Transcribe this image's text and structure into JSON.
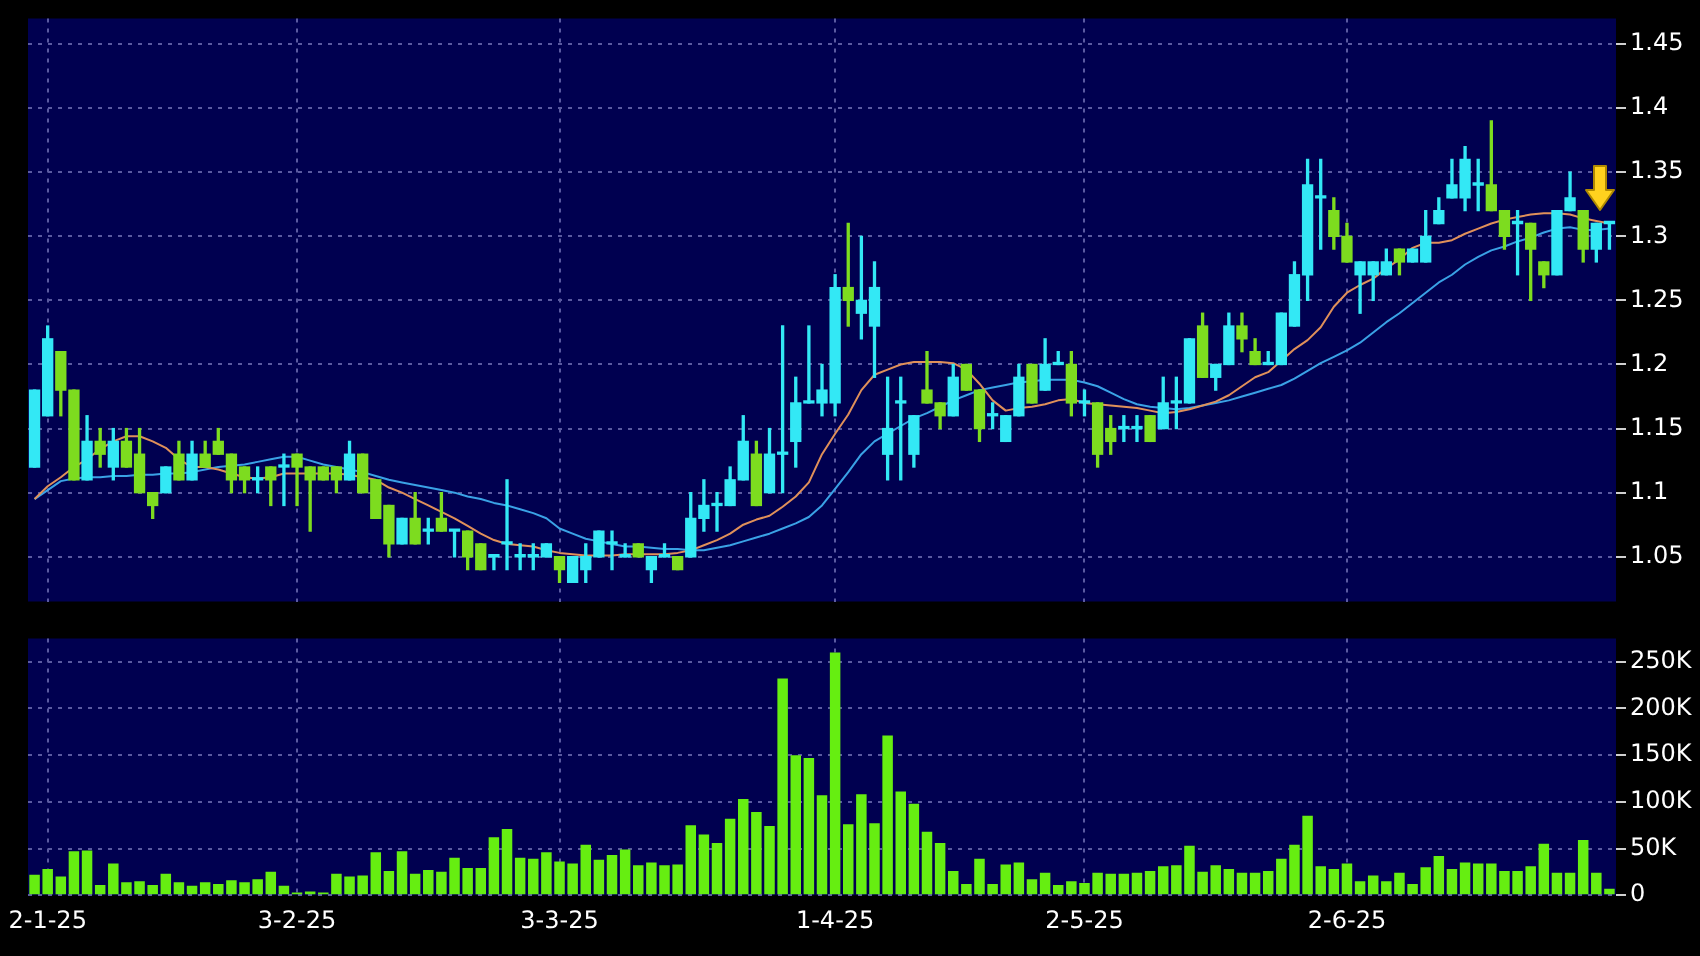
{
  "chart_data": [
    {
      "type": "candlestick",
      "categories": [
        null,
        null,
        null,
        null,
        null,
        null,
        null,
        null,
        null,
        null,
        null,
        null,
        null,
        null,
        null,
        null,
        null,
        null,
        null,
        null,
        null,
        null,
        null,
        null,
        null,
        null,
        null,
        null,
        null,
        null,
        null,
        null,
        null,
        null,
        null,
        null,
        null,
        null,
        null,
        null,
        null,
        null,
        null,
        null,
        null,
        null,
        null,
        null,
        null,
        null,
        null,
        null,
        null,
        null,
        null,
        null,
        null,
        null,
        null,
        null,
        null,
        null,
        null,
        null,
        null,
        null,
        null,
        null,
        null,
        null,
        null,
        null,
        null,
        null,
        null,
        null,
        null,
        null,
        null,
        null,
        null,
        null,
        null,
        null,
        null,
        null,
        null,
        null,
        null,
        null,
        null,
        null,
        null,
        null,
        null,
        null,
        null,
        null,
        null,
        null,
        null,
        null,
        null,
        null,
        null,
        null,
        null,
        null,
        null,
        null,
        null,
        null,
        null,
        null,
        null,
        null,
        null,
        null,
        null,
        null,
        null
      ],
      "ohlc": [
        [
          1.12,
          1.18,
          1.12,
          1.18
        ],
        [
          1.16,
          1.23,
          1.16,
          1.22
        ],
        [
          1.21,
          1.21,
          1.16,
          1.18
        ],
        [
          1.18,
          1.18,
          1.11,
          1.11
        ],
        [
          1.11,
          1.16,
          1.11,
          1.14
        ],
        [
          1.14,
          1.15,
          1.12,
          1.13
        ],
        [
          1.12,
          1.15,
          1.11,
          1.14
        ],
        [
          1.14,
          1.15,
          1.12,
          1.12
        ],
        [
          1.13,
          1.15,
          1.1,
          1.1
        ],
        [
          1.1,
          1.1,
          1.08,
          1.09
        ],
        [
          1.1,
          1.12,
          1.1,
          1.12
        ],
        [
          1.13,
          1.14,
          1.11,
          1.11
        ],
        [
          1.11,
          1.14,
          1.11,
          1.13
        ],
        [
          1.13,
          1.14,
          1.12,
          1.12
        ],
        [
          1.14,
          1.15,
          1.13,
          1.13
        ],
        [
          1.13,
          1.13,
          1.1,
          1.11
        ],
        [
          1.12,
          1.12,
          1.1,
          1.11
        ],
        [
          1.11,
          1.12,
          1.1,
          1.11
        ],
        [
          1.12,
          1.12,
          1.09,
          1.11
        ],
        [
          1.12,
          1.13,
          1.09,
          1.12
        ],
        [
          1.13,
          1.13,
          1.09,
          1.12
        ],
        [
          1.12,
          1.12,
          1.07,
          1.11
        ],
        [
          1.12,
          1.12,
          1.11,
          1.11
        ],
        [
          1.12,
          1.12,
          1.1,
          1.11
        ],
        [
          1.11,
          1.14,
          1.11,
          1.13
        ],
        [
          1.13,
          1.13,
          1.1,
          1.1
        ],
        [
          1.11,
          1.11,
          1.08,
          1.08
        ],
        [
          1.09,
          1.09,
          1.05,
          1.06
        ],
        [
          1.06,
          1.08,
          1.06,
          1.08
        ],
        [
          1.08,
          1.1,
          1.06,
          1.06
        ],
        [
          1.07,
          1.08,
          1.06,
          1.07
        ],
        [
          1.08,
          1.1,
          1.07,
          1.07
        ],
        [
          1.07,
          1.07,
          1.05,
          1.07
        ],
        [
          1.07,
          1.07,
          1.04,
          1.05
        ],
        [
          1.06,
          1.06,
          1.04,
          1.04
        ],
        [
          1.05,
          1.05,
          1.04,
          1.05
        ],
        [
          1.06,
          1.11,
          1.04,
          1.06
        ],
        [
          1.05,
          1.06,
          1.04,
          1.05
        ],
        [
          1.05,
          1.06,
          1.04,
          1.05
        ],
        [
          1.05,
          1.06,
          1.05,
          1.06
        ],
        [
          1.05,
          1.05,
          1.03,
          1.04
        ],
        [
          1.03,
          1.05,
          1.03,
          1.05
        ],
        [
          1.04,
          1.06,
          1.03,
          1.05
        ],
        [
          1.05,
          1.07,
          1.05,
          1.07
        ],
        [
          1.06,
          1.07,
          1.04,
          1.06
        ],
        [
          1.05,
          1.06,
          1.05,
          1.05
        ],
        [
          1.06,
          1.06,
          1.05,
          1.05
        ],
        [
          1.04,
          1.05,
          1.03,
          1.05
        ],
        [
          1.05,
          1.06,
          1.05,
          1.05
        ],
        [
          1.05,
          1.05,
          1.04,
          1.04
        ],
        [
          1.05,
          1.1,
          1.05,
          1.08
        ],
        [
          1.08,
          1.11,
          1.07,
          1.09
        ],
        [
          1.09,
          1.1,
          1.07,
          1.09
        ],
        [
          1.09,
          1.12,
          1.09,
          1.11
        ],
        [
          1.11,
          1.16,
          1.11,
          1.14
        ],
        [
          1.13,
          1.14,
          1.09,
          1.09
        ],
        [
          1.1,
          1.15,
          1.1,
          1.13
        ],
        [
          1.13,
          1.23,
          1.1,
          1.13
        ],
        [
          1.14,
          1.19,
          1.12,
          1.17
        ],
        [
          1.17,
          1.23,
          1.17,
          1.17
        ],
        [
          1.17,
          1.2,
          1.16,
          1.18
        ],
        [
          1.17,
          1.27,
          1.16,
          1.26
        ],
        [
          1.26,
          1.31,
          1.23,
          1.25
        ],
        [
          1.24,
          1.3,
          1.22,
          1.25
        ],
        [
          1.23,
          1.28,
          1.19,
          1.26
        ],
        [
          1.13,
          1.19,
          1.11,
          1.15
        ],
        [
          1.17,
          1.19,
          1.11,
          1.17
        ],
        [
          1.13,
          1.16,
          1.12,
          1.16
        ],
        [
          1.18,
          1.21,
          1.17,
          1.17
        ],
        [
          1.17,
          1.17,
          1.15,
          1.16
        ],
        [
          1.16,
          1.2,
          1.16,
          1.19
        ],
        [
          1.2,
          1.2,
          1.18,
          1.18
        ],
        [
          1.18,
          1.18,
          1.14,
          1.15
        ],
        [
          1.16,
          1.17,
          1.15,
          1.16
        ],
        [
          1.14,
          1.16,
          1.14,
          1.16
        ],
        [
          1.16,
          1.2,
          1.16,
          1.19
        ],
        [
          1.2,
          1.2,
          1.17,
          1.17
        ],
        [
          1.18,
          1.22,
          1.18,
          1.2
        ],
        [
          1.2,
          1.21,
          1.2,
          1.2
        ],
        [
          1.2,
          1.21,
          1.16,
          1.17
        ],
        [
          1.17,
          1.18,
          1.16,
          1.17
        ],
        [
          1.17,
          1.17,
          1.12,
          1.13
        ],
        [
          1.15,
          1.16,
          1.13,
          1.14
        ],
        [
          1.15,
          1.16,
          1.14,
          1.15
        ],
        [
          1.15,
          1.16,
          1.14,
          1.15
        ],
        [
          1.16,
          1.16,
          1.14,
          1.14
        ],
        [
          1.15,
          1.19,
          1.15,
          1.17
        ],
        [
          1.17,
          1.19,
          1.15,
          1.17
        ],
        [
          1.17,
          1.22,
          1.17,
          1.22
        ],
        [
          1.23,
          1.24,
          1.19,
          1.19
        ],
        [
          1.19,
          1.2,
          1.18,
          1.2
        ],
        [
          1.2,
          1.24,
          1.2,
          1.23
        ],
        [
          1.23,
          1.24,
          1.21,
          1.22
        ],
        [
          1.21,
          1.22,
          1.2,
          1.2
        ],
        [
          1.2,
          1.21,
          1.2,
          1.2
        ],
        [
          1.2,
          1.24,
          1.2,
          1.24
        ],
        [
          1.23,
          1.28,
          1.23,
          1.27
        ],
        [
          1.27,
          1.36,
          1.25,
          1.34
        ],
        [
          1.33,
          1.36,
          1.29,
          1.33
        ],
        [
          1.32,
          1.33,
          1.29,
          1.3
        ],
        [
          1.3,
          1.31,
          1.28,
          1.28
        ],
        [
          1.27,
          1.28,
          1.24,
          1.28
        ],
        [
          1.27,
          1.28,
          1.25,
          1.28
        ],
        [
          1.27,
          1.29,
          1.27,
          1.28
        ],
        [
          1.29,
          1.29,
          1.27,
          1.28
        ],
        [
          1.28,
          1.29,
          1.28,
          1.29
        ],
        [
          1.28,
          1.32,
          1.28,
          1.3
        ],
        [
          1.31,
          1.33,
          1.31,
          1.32
        ],
        [
          1.33,
          1.36,
          1.33,
          1.34
        ],
        [
          1.33,
          1.37,
          1.32,
          1.36
        ],
        [
          1.34,
          1.36,
          1.32,
          1.34
        ],
        [
          1.34,
          1.39,
          1.32,
          1.32
        ],
        [
          1.32,
          1.32,
          1.29,
          1.3
        ],
        [
          1.31,
          1.32,
          1.27,
          1.31
        ],
        [
          1.31,
          1.31,
          1.25,
          1.29
        ],
        [
          1.28,
          1.28,
          1.26,
          1.27
        ],
        [
          1.27,
          1.32,
          1.27,
          1.32
        ],
        [
          1.32,
          1.35,
          1.32,
          1.33
        ],
        [
          1.32,
          1.32,
          1.28,
          1.29
        ],
        [
          1.29,
          1.31,
          1.28,
          1.31
        ],
        [
          1.31,
          1.31,
          1.29,
          1.31
        ]
      ],
      "colors": [
        "#33e8f5",
        "#33e8f5",
        "#7ddc1f",
        "#7ddc1f",
        "#33e8f5",
        "#7ddc1f",
        "#33e8f5",
        "#7ddc1f",
        "#7ddc1f",
        "#7ddc1f",
        "#33e8f5",
        "#7ddc1f",
        "#33e8f5",
        "#7ddc1f",
        "#7ddc1f",
        "#7ddc1f",
        "#7ddc1f",
        "#33e8f5",
        "#7ddc1f",
        "#33e8f5",
        "#7ddc1f",
        "#7ddc1f",
        "#7ddc1f",
        "#7ddc1f",
        "#33e8f5",
        "#7ddc1f",
        "#7ddc1f",
        "#7ddc1f",
        "#33e8f5",
        "#7ddc1f",
        "#33e8f5",
        "#7ddc1f",
        "#33e8f5",
        "#7ddc1f",
        "#7ddc1f",
        "#33e8f5",
        "#33e8f5",
        "#33e8f5",
        "#33e8f5",
        "#33e8f5",
        "#7ddc1f",
        "#33e8f5",
        "#33e8f5",
        "#33e8f5",
        "#33e8f5",
        "#33e8f5",
        "#7ddc1f",
        "#33e8f5",
        "#33e8f5",
        "#7ddc1f",
        "#33e8f5",
        "#33e8f5",
        "#33e8f5",
        "#33e8f5",
        "#33e8f5",
        "#7ddc1f",
        "#33e8f5",
        "#33e8f5",
        "#33e8f5",
        "#33e8f5",
        "#33e8f5",
        "#33e8f5",
        "#7ddc1f",
        "#33e8f5",
        "#33e8f5",
        "#33e8f5",
        "#33e8f5",
        "#33e8f5",
        "#7ddc1f",
        "#7ddc1f",
        "#33e8f5",
        "#7ddc1f",
        "#7ddc1f",
        "#33e8f5",
        "#33e8f5",
        "#33e8f5",
        "#7ddc1f",
        "#33e8f5",
        "#33e8f5",
        "#7ddc1f",
        "#33e8f5",
        "#7ddc1f",
        "#7ddc1f",
        "#33e8f5",
        "#33e8f5",
        "#7ddc1f",
        "#33e8f5",
        "#33e8f5",
        "#33e8f5",
        "#7ddc1f",
        "#33e8f5",
        "#33e8f5",
        "#7ddc1f",
        "#7ddc1f",
        "#33e8f5",
        "#33e8f5",
        "#33e8f5",
        "#33e8f5",
        "#33e8f5",
        "#7ddc1f",
        "#7ddc1f",
        "#33e8f5",
        "#33e8f5",
        "#33e8f5",
        "#7ddc1f",
        "#33e8f5",
        "#33e8f5",
        "#33e8f5",
        "#33e8f5",
        "#33e8f5",
        "#33e8f5",
        "#7ddc1f",
        "#7ddc1f",
        "#33e8f5",
        "#7ddc1f",
        "#7ddc1f",
        "#33e8f5",
        "#33e8f5",
        "#7ddc1f",
        "#33e8f5",
        "#33e8f5"
      ],
      "series": [
        {
          "type": "line",
          "color": "#e0905a",
          "values": [
            1.095,
            1.105,
            1.112,
            1.12,
            1.126,
            1.134,
            1.14,
            1.144,
            1.144,
            1.14,
            1.135,
            1.126,
            1.12,
            1.12,
            1.118,
            1.115,
            1.112,
            1.111,
            1.112,
            1.115,
            1.115,
            1.115,
            1.115,
            1.115,
            1.114,
            1.112,
            1.11,
            1.104,
            1.1,
            1.095,
            1.09,
            1.085,
            1.08,
            1.074,
            1.068,
            1.063,
            1.06,
            1.059,
            1.058,
            1.055,
            1.053,
            1.052,
            1.051,
            1.051,
            1.051,
            1.052,
            1.052,
            1.052,
            1.052,
            1.053,
            1.055,
            1.059,
            1.063,
            1.068,
            1.075,
            1.079,
            1.082,
            1.089,
            1.097,
            1.108,
            1.13,
            1.146,
            1.161,
            1.18,
            1.192,
            1.196,
            1.2,
            1.202,
            1.202,
            1.202,
            1.201,
            1.196,
            1.185,
            1.172,
            1.164,
            1.166,
            1.167,
            1.169,
            1.172,
            1.173,
            1.17,
            1.169,
            1.168,
            1.167,
            1.166,
            1.164,
            1.162,
            1.163,
            1.165,
            1.168,
            1.171,
            1.176,
            1.183,
            1.19,
            1.194,
            1.203,
            1.212,
            1.219,
            1.229,
            1.245,
            1.256,
            1.262,
            1.267,
            1.275,
            1.282,
            1.291,
            1.295,
            1.295,
            1.297,
            1.302,
            1.306,
            1.31,
            1.313,
            1.315,
            1.317,
            1.318,
            1.318,
            1.317,
            1.314,
            1.312,
            1.31
          ]
        },
        {
          "type": "line",
          "color": "#3aa2e6",
          "values": [
            1.095,
            1.102,
            1.109,
            1.111,
            1.112,
            1.112,
            1.113,
            1.113,
            1.114,
            1.114,
            1.115,
            1.115,
            1.116,
            1.118,
            1.12,
            1.121,
            1.122,
            1.124,
            1.126,
            1.128,
            1.128,
            1.125,
            1.122,
            1.12,
            1.118,
            1.116,
            1.113,
            1.11,
            1.108,
            1.106,
            1.104,
            1.102,
            1.1,
            1.097,
            1.095,
            1.092,
            1.09,
            1.087,
            1.084,
            1.08,
            1.072,
            1.068,
            1.064,
            1.062,
            1.06,
            1.058,
            1.058,
            1.057,
            1.056,
            1.056,
            1.055,
            1.055,
            1.057,
            1.059,
            1.062,
            1.065,
            1.068,
            1.072,
            1.076,
            1.081,
            1.09,
            1.103,
            1.116,
            1.13,
            1.14,
            1.146,
            1.152,
            1.158,
            1.162,
            1.167,
            1.172,
            1.176,
            1.18,
            1.182,
            1.184,
            1.186,
            1.187,
            1.188,
            1.188,
            1.188,
            1.186,
            1.183,
            1.178,
            1.173,
            1.169,
            1.167,
            1.166,
            1.165,
            1.166,
            1.168,
            1.17,
            1.172,
            1.175,
            1.178,
            1.181,
            1.184,
            1.189,
            1.195,
            1.201,
            1.206,
            1.211,
            1.217,
            1.225,
            1.233,
            1.24,
            1.248,
            1.256,
            1.264,
            1.27,
            1.278,
            1.284,
            1.289,
            1.292,
            1.296,
            1.299,
            1.303,
            1.306,
            1.307,
            1.305,
            1.305,
            1.306
          ]
        }
      ],
      "ylim": [
        1.015,
        1.47
      ],
      "yticks": [
        1.05,
        1.1,
        1.15,
        1.2,
        1.25,
        1.3,
        1.35,
        1.4,
        1.45
      ],
      "grid": true,
      "tick_labels": "y"
    },
    {
      "type": "bar",
      "categories": [
        null,
        "2-1-25",
        null,
        null,
        null,
        null,
        null,
        null,
        null,
        null,
        null,
        null,
        null,
        null,
        null,
        null,
        null,
        null,
        null,
        null,
        "3-2-25",
        null,
        null,
        null,
        null,
        null,
        null,
        null,
        null,
        null,
        null,
        null,
        null,
        null,
        null,
        null,
        null,
        null,
        null,
        null,
        "3-3-25",
        null,
        null,
        null,
        null,
        null,
        null,
        null,
        null,
        null,
        null,
        null,
        null,
        null,
        null,
        null,
        null,
        null,
        null,
        null,
        null,
        "1-4-25",
        null,
        null,
        null,
        null,
        null,
        null,
        null,
        null,
        null,
        null,
        null,
        null,
        null,
        null,
        null,
        null,
        null,
        null,
        "2-5-25",
        null,
        null,
        null,
        null,
        null,
        null,
        null,
        null,
        null,
        null,
        null,
        null,
        null,
        null,
        null,
        null,
        null,
        null,
        null,
        "2-6-25",
        null,
        null,
        null,
        null,
        null,
        null,
        null,
        null,
        null,
        null,
        null,
        null,
        null,
        null,
        null,
        null,
        null,
        null,
        null,
        null
      ],
      "values": [
        22000,
        28000,
        20000,
        47000,
        48000,
        11000,
        34000,
        14000,
        15000,
        11000,
        23000,
        14000,
        10000,
        14000,
        12000,
        16000,
        14000,
        17000,
        25000,
        10000,
        3000,
        4000,
        3000,
        23000,
        20000,
        21000,
        46000,
        26000,
        47000,
        23000,
        27000,
        25000,
        40000,
        29000,
        29000,
        62000,
        71000,
        40000,
        39000,
        46000,
        36000,
        34000,
        54000,
        38000,
        43000,
        49000,
        32000,
        35000,
        32000,
        33000,
        75000,
        65000,
        56000,
        82000,
        103000,
        89000,
        74000,
        232000,
        150000,
        147000,
        107000,
        260000,
        76000,
        108000,
        77000,
        171000,
        111000,
        98000,
        68000,
        56000,
        26000,
        12000,
        39000,
        12000,
        33000,
        35000,
        17000,
        24000,
        11000,
        15000,
        13000,
        24000,
        23000,
        23000,
        24000,
        26000,
        31000,
        32000,
        53000,
        25000,
        32000,
        28000,
        24000,
        24000,
        26000,
        39000,
        54000,
        85000,
        31000,
        28000,
        34000,
        15000,
        21000,
        15000,
        24000,
        12000,
        30000,
        42000,
        28000,
        35000,
        34000,
        34000,
        26000,
        26000,
        31000,
        55000,
        24000,
        24000,
        59000,
        24000,
        7000
      ],
      "color": "#66ee11",
      "ylim": [
        0,
        275000
      ],
      "yticks": [
        0,
        {
          "value": 50000,
          "label": "50K"
        },
        {
          "value": 100000,
          "label": "100K"
        },
        {
          "value": 150000,
          "label": "150K"
        },
        {
          "value": 200000,
          "label": "200K"
        },
        {
          "value": 250000,
          "label": "250K"
        }
      ],
      "grid": true
    }
  ]
}
